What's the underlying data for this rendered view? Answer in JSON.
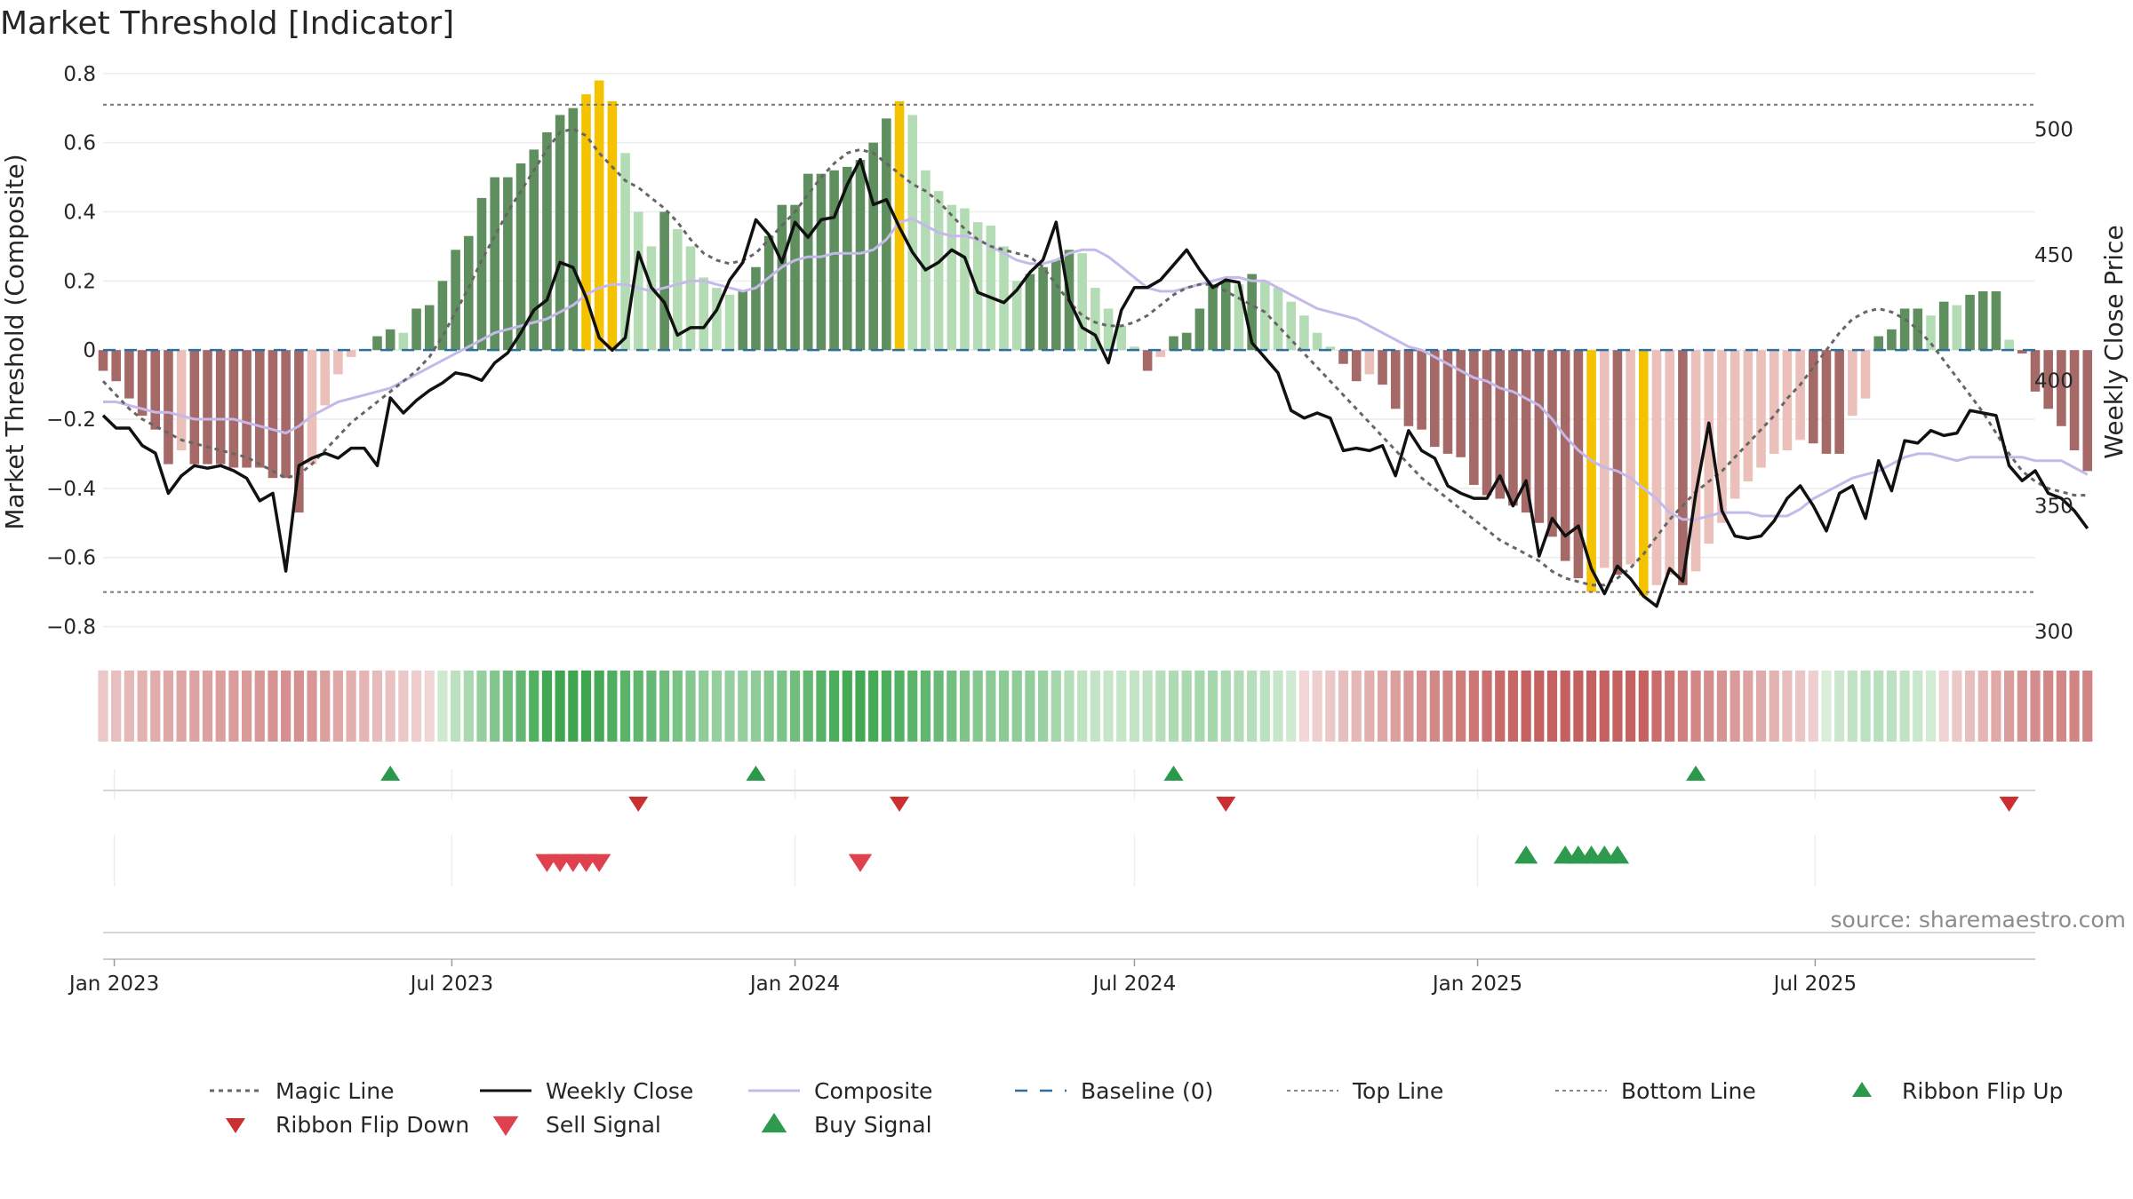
{
  "title": "Market Threshold [Indicator]",
  "source": "source: sharemaestro.com",
  "colors": {
    "bull_light": "#b4dcb4",
    "bull_dark": "#5f8f5f",
    "bear_light": "#ebbfba",
    "bear_dark": "#a56a68",
    "extreme": "#f5c200",
    "composite": "#c5b9ea",
    "magic": "#666666",
    "close": "#111111",
    "flip_up": "#2a9a4a",
    "flip_down": "#cc2f2f",
    "sell": "#e0414f",
    "buy": "#2e9a4d"
  },
  "chart_data": {
    "type": "bar",
    "title": "Market Threshold [Indicator]",
    "ylabel": "Market Threshold (Composite)",
    "y2label": "Weekly Close Price",
    "ylim": [
      -0.85,
      0.82
    ],
    "y2lim": [
      295,
      525
    ],
    "yticks": [
      0.8,
      0.6,
      0.4,
      0.2,
      0,
      -0.2,
      -0.4,
      -0.6,
      -0.8
    ],
    "ytick_labels": [
      "0.8",
      "0.6",
      "0.4",
      "0.2",
      "0",
      "−0.2",
      "−0.4",
      "−0.6",
      "−0.8"
    ],
    "y2ticks": [
      500,
      450,
      400,
      350,
      300
    ],
    "y2tick_labels": [
      "500",
      "450",
      "400",
      "350",
      "300"
    ],
    "xrange": [
      "2022-12-26",
      "2025-10-27"
    ],
    "xticks": [
      {
        "date": "2023-01-01",
        "label": "Jan 2023"
      },
      {
        "date": "2023-07-01",
        "label": "Jul 2023"
      },
      {
        "date": "2024-01-01",
        "label": "Jan 2024"
      },
      {
        "date": "2024-07-01",
        "label": "Jul 2024"
      },
      {
        "date": "2025-01-01",
        "label": "Jan 2025"
      },
      {
        "date": "2025-07-01",
        "label": "Jul 2025"
      }
    ],
    "top_line": 0.71,
    "bottom_line": -0.7,
    "baseline": 0,
    "grid": true,
    "legend_position": "bottom",
    "weeks_start": "2022-12-26",
    "histogram": [
      -0.06,
      -0.09,
      -0.14,
      -0.19,
      -0.23,
      -0.33,
      -0.29,
      -0.33,
      -0.33,
      -0.33,
      -0.34,
      -0.34,
      -0.34,
      -0.37,
      -0.37,
      -0.47,
      -0.33,
      -0.16,
      -0.07,
      -0.02,
      0,
      0.04,
      0.06,
      0.05,
      0.12,
      0.13,
      0.2,
      0.29,
      0.33,
      0.44,
      0.5,
      0.5,
      0.54,
      0.58,
      0.63,
      0.68,
      0.7,
      0.74,
      0.78,
      0.72,
      0.57,
      0.4,
      0.3,
      0.4,
      0.35,
      0.3,
      0.21,
      0.18,
      0.16,
      0.17,
      0.24,
      0.33,
      0.42,
      0.42,
      0.51,
      0.51,
      0.52,
      0.53,
      0.55,
      0.6,
      0.67,
      0.72,
      0.68,
      0.52,
      0.46,
      0.42,
      0.41,
      0.37,
      0.36,
      0.3,
      0.2,
      0.22,
      0.24,
      0.26,
      0.29,
      0.28,
      0.18,
      0.12,
      0.07,
      0.01,
      -0.06,
      -0.02,
      0.04,
      0.05,
      0.12,
      0.19,
      0.2,
      0.19,
      0.22,
      0.2,
      0.18,
      0.14,
      0.1,
      0.05,
      0.01,
      -0.04,
      -0.09,
      -0.07,
      -0.1,
      -0.17,
      -0.22,
      -0.23,
      -0.28,
      -0.3,
      -0.31,
      -0.39,
      -0.42,
      -0.43,
      -0.45,
      -0.47,
      -0.5,
      -0.54,
      -0.61,
      -0.66,
      -0.7,
      -0.63,
      -0.65,
      -0.62,
      -0.71,
      -0.68,
      -0.65,
      -0.68,
      -0.64,
      -0.56,
      -0.5,
      -0.43,
      -0.38,
      -0.34,
      -0.3,
      -0.29,
      -0.26,
      -0.27,
      -0.3,
      -0.3,
      -0.19,
      -0.14,
      0.04,
      0.06,
      0.12,
      0.12,
      0.1,
      0.14,
      0.13,
      0.16,
      0.17,
      0.17,
      0.03,
      -0.01,
      -0.12,
      -0.17,
      -0.22,
      -0.29,
      -0.35
    ],
    "weekly_close": [
      386,
      381,
      381,
      374,
      371,
      355,
      362,
      366,
      365,
      366,
      364,
      361,
      352,
      355,
      324,
      366,
      369,
      371,
      369,
      373,
      373,
      366,
      393,
      387,
      392,
      396,
      399,
      403,
      402,
      400,
      407,
      411,
      419,
      428,
      432,
      447,
      445,
      433,
      417,
      412,
      417,
      451,
      437,
      431,
      418,
      421,
      421,
      428,
      440,
      447,
      464,
      458,
      447,
      463,
      457,
      464,
      465,
      478,
      488,
      470,
      472,
      461,
      451,
      444,
      447,
      452,
      449,
      435,
      433,
      431,
      436,
      443,
      448,
      463,
      432,
      421,
      418,
      407,
      428,
      437,
      437,
      440,
      446,
      452,
      444,
      437,
      440,
      439,
      415,
      409,
      403,
      388,
      385,
      387,
      385,
      372,
      373,
      372,
      374,
      362,
      380,
      372,
      369,
      358,
      355,
      353,
      353,
      362,
      350,
      360,
      330,
      345,
      338,
      342,
      325,
      315,
      326,
      321,
      314,
      310,
      325,
      320,
      355,
      383,
      348,
      338,
      337,
      338,
      344,
      353,
      358,
      350,
      340,
      355,
      358,
      345,
      368,
      356,
      376,
      375,
      380,
      378,
      379,
      388,
      387,
      386,
      366,
      360,
      364,
      355,
      353,
      348,
      341
    ],
    "composite": [
      -0.15,
      -0.15,
      -0.16,
      -0.17,
      -0.18,
      -0.18,
      -0.19,
      -0.2,
      -0.2,
      -0.2,
      -0.2,
      -0.21,
      -0.22,
      -0.23,
      -0.24,
      -0.22,
      -0.19,
      -0.17,
      -0.15,
      -0.14,
      -0.13,
      -0.12,
      -0.11,
      -0.09,
      -0.07,
      -0.05,
      -0.03,
      -0.01,
      0.01,
      0.03,
      0.05,
      0.06,
      0.07,
      0.08,
      0.09,
      0.11,
      0.13,
      0.16,
      0.18,
      0.19,
      0.19,
      0.18,
      0.17,
      0.18,
      0.19,
      0.2,
      0.2,
      0.19,
      0.18,
      0.17,
      0.18,
      0.21,
      0.24,
      0.26,
      0.27,
      0.27,
      0.28,
      0.28,
      0.28,
      0.29,
      0.32,
      0.37,
      0.38,
      0.36,
      0.34,
      0.33,
      0.33,
      0.32,
      0.3,
      0.28,
      0.26,
      0.25,
      0.25,
      0.26,
      0.28,
      0.29,
      0.29,
      0.27,
      0.24,
      0.21,
      0.18,
      0.17,
      0.17,
      0.18,
      0.19,
      0.2,
      0.21,
      0.21,
      0.2,
      0.2,
      0.18,
      0.16,
      0.14,
      0.12,
      0.11,
      0.1,
      0.09,
      0.07,
      0.05,
      0.03,
      0.01,
      0,
      -0.02,
      -0.04,
      -0.06,
      -0.08,
      -0.09,
      -0.11,
      -0.12,
      -0.14,
      -0.16,
      -0.2,
      -0.25,
      -0.29,
      -0.32,
      -0.34,
      -0.35,
      -0.37,
      -0.4,
      -0.43,
      -0.47,
      -0.49,
      -0.49,
      -0.48,
      -0.47,
      -0.47,
      -0.47,
      -0.48,
      -0.48,
      -0.48,
      -0.46,
      -0.43,
      -0.41,
      -0.39,
      -0.37,
      -0.36,
      -0.35,
      -0.33,
      -0.31,
      -0.3,
      -0.3,
      -0.31,
      -0.32,
      -0.31,
      -0.31,
      -0.31,
      -0.31,
      -0.31,
      -0.32,
      -0.32,
      -0.32,
      -0.34,
      -0.36
    ],
    "magic_line": [
      -0.09,
      -0.13,
      -0.17,
      -0.2,
      -0.22,
      -0.24,
      -0.26,
      -0.27,
      -0.28,
      -0.29,
      -0.3,
      -0.31,
      -0.33,
      -0.35,
      -0.37,
      -0.36,
      -0.33,
      -0.29,
      -0.25,
      -0.21,
      -0.18,
      -0.15,
      -0.12,
      -0.09,
      -0.06,
      -0.02,
      0.04,
      0.11,
      0.18,
      0.26,
      0.33,
      0.4,
      0.46,
      0.52,
      0.58,
      0.63,
      0.64,
      0.62,
      0.57,
      0.53,
      0.49,
      0.47,
      0.44,
      0.41,
      0.37,
      0.32,
      0.28,
      0.26,
      0.25,
      0.26,
      0.28,
      0.32,
      0.36,
      0.4,
      0.45,
      0.5,
      0.54,
      0.57,
      0.58,
      0.57,
      0.54,
      0.51,
      0.48,
      0.46,
      0.43,
      0.39,
      0.35,
      0.32,
      0.3,
      0.29,
      0.28,
      0.27,
      0.24,
      0.19,
      0.14,
      0.1,
      0.08,
      0.07,
      0.07,
      0.08,
      0.1,
      0.13,
      0.16,
      0.18,
      0.19,
      0.19,
      0.17,
      0.15,
      0.13,
      0.11,
      0.07,
      0.03,
      -0.01,
      -0.05,
      -0.09,
      -0.13,
      -0.17,
      -0.21,
      -0.25,
      -0.29,
      -0.33,
      -0.37,
      -0.4,
      -0.43,
      -0.46,
      -0.49,
      -0.52,
      -0.55,
      -0.57,
      -0.59,
      -0.61,
      -0.64,
      -0.66,
      -0.67,
      -0.68,
      -0.68,
      -0.66,
      -0.63,
      -0.59,
      -0.54,
      -0.49,
      -0.45,
      -0.41,
      -0.38,
      -0.35,
      -0.31,
      -0.27,
      -0.23,
      -0.19,
      -0.14,
      -0.1,
      -0.05,
      0,
      0.05,
      0.09,
      0.11,
      0.12,
      0.11,
      0.09,
      0.06,
      0.02,
      -0.03,
      -0.08,
      -0.13,
      -0.18,
      -0.24,
      -0.3,
      -0.35,
      -0.38,
      -0.4,
      -0.41,
      -0.42,
      -0.42
    ],
    "ribbon_flip_up": [
      "2023-05-29",
      "2023-12-11",
      "2024-07-22",
      "2025-04-28"
    ],
    "ribbon_flip_down": [
      "2023-10-09",
      "2024-02-26",
      "2024-08-19",
      "2025-10-13"
    ],
    "sell_signals": [
      "2023-08-21",
      "2023-08-28",
      "2023-09-04",
      "2023-09-11",
      "2023-09-18",
      "2024-02-05"
    ],
    "buy_signals": [
      "2025-01-27",
      "2025-02-17",
      "2025-02-24",
      "2025-03-03",
      "2025-03-10",
      "2025-03-17"
    ],
    "legend": [
      {
        "label": "Magic Line",
        "kind": "line-dotted",
        "color": "#666666"
      },
      {
        "label": "Weekly Close",
        "kind": "line-solid",
        "color": "#111111"
      },
      {
        "label": "Composite",
        "kind": "line-solid",
        "color": "#c5b9ea"
      },
      {
        "label": "Baseline (0)",
        "kind": "line-dashed",
        "color": "#2e6fa0"
      },
      {
        "label": "Top Line",
        "kind": "line-dotted-light",
        "color": "#888888"
      },
      {
        "label": "Bottom Line",
        "kind": "line-dotted-light",
        "color": "#888888"
      },
      {
        "label": "Ribbon Flip Up",
        "kind": "triangle-up",
        "color": "#2a9a4a"
      },
      {
        "label": "Ribbon Flip Down",
        "kind": "triangle-down",
        "color": "#cc2f2f"
      },
      {
        "label": "Sell Signal",
        "kind": "triangle-down-large",
        "color": "#e0414f"
      },
      {
        "label": "Buy Signal",
        "kind": "triangle-up-large",
        "color": "#2e9a4d"
      }
    ]
  }
}
